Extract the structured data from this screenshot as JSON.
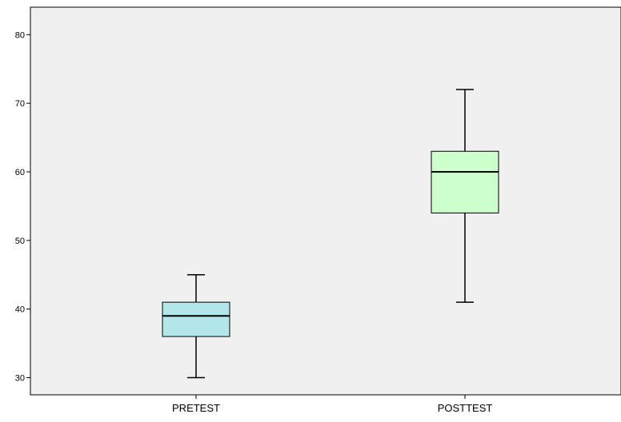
{
  "chart_data": {
    "type": "boxplot",
    "title": "",
    "xlabel": "",
    "ylabel": "",
    "ylim": [
      27.5,
      84
    ],
    "yticks": [
      30,
      40,
      50,
      60,
      70,
      80
    ],
    "grid": false,
    "categories": [
      "PRETEST",
      "POSTTEST"
    ],
    "boxes": [
      {
        "category": "PRETEST",
        "min": 30,
        "q1": 36,
        "median": 39,
        "q3": 41,
        "max": 45,
        "color": "#b3e6e8"
      },
      {
        "category": "POSTTEST",
        "min": 41,
        "q1": 54,
        "median": 60,
        "q3": 63,
        "max": 72,
        "color": "#ccffcc"
      }
    ]
  },
  "colors": {
    "plot_background": "#f0f0f0",
    "axis": "#000000"
  }
}
